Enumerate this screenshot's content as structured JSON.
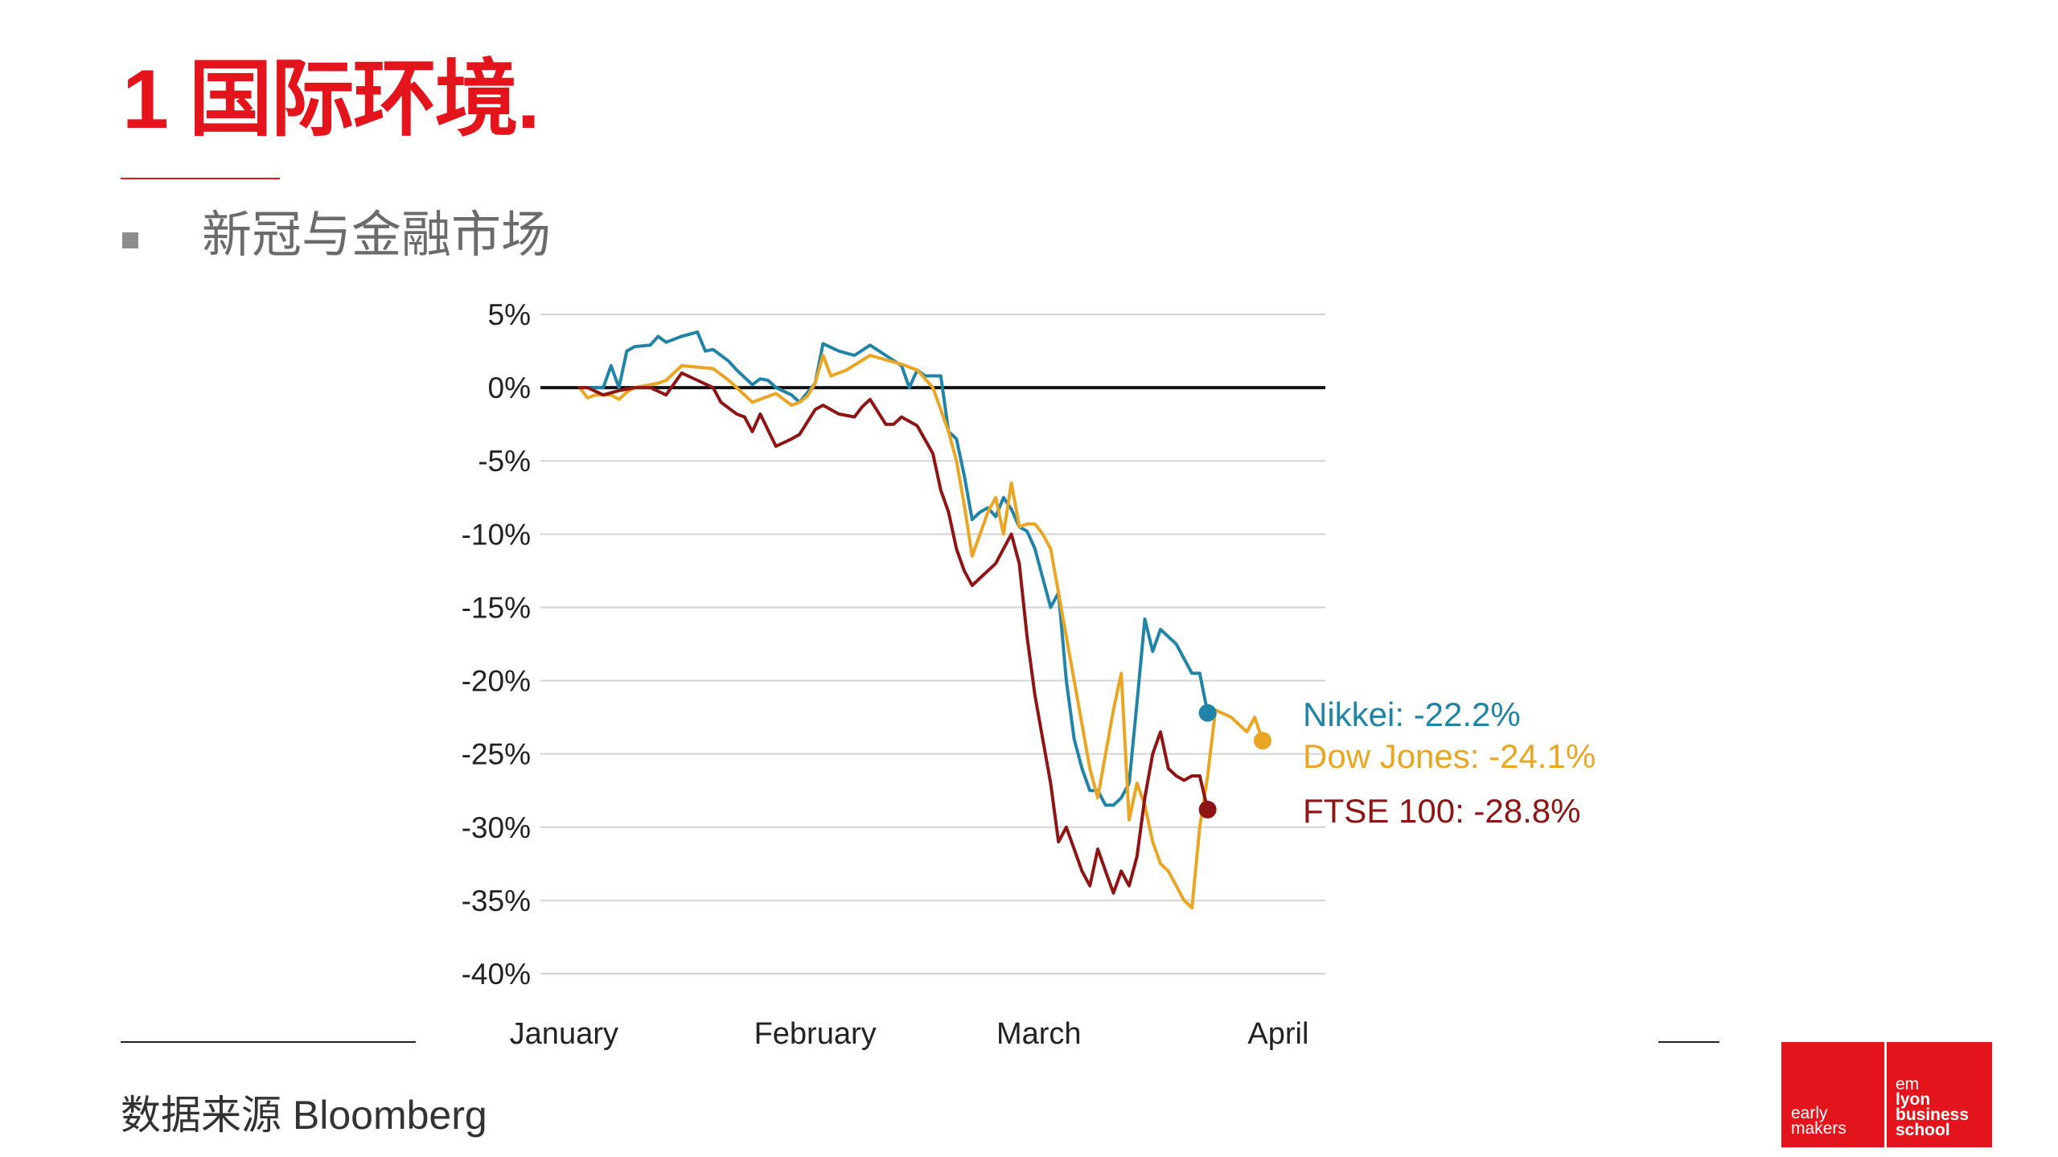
{
  "slide": {
    "title": "1 国际环境.",
    "bullet": "新冠与金融市场",
    "source": "数据来源 Bloomberg"
  },
  "logo": {
    "left_line1": "early",
    "left_line2": "makers",
    "right_line1": "em",
    "right_line2": "lyon",
    "right_line3": "business",
    "right_line4": "school",
    "color": "#e3141b"
  },
  "chart_data": {
    "type": "line",
    "title": "",
    "xlabel": "",
    "ylabel": "",
    "ylim": [
      -40,
      5
    ],
    "yticks": [
      5,
      0,
      -5,
      -10,
      -15,
      -20,
      -25,
      -30,
      -35,
      -40
    ],
    "ytick_labels": [
      "5%",
      "0%",
      "-5%",
      "-10%",
      "-15%",
      "-20%",
      "-25%",
      "-30%",
      "-35%",
      "-40%"
    ],
    "xlim": [
      0,
      100
    ],
    "xtick_positions": [
      3,
      35,
      63.5,
      94
    ],
    "xtick_labels": [
      "January",
      "February",
      "March",
      "April"
    ],
    "grid": true,
    "series": [
      {
        "name": "Nikkei",
        "label": "Nikkei: -22.2%",
        "color": "#1f84a8",
        "final": -22.2,
        "points": [
          [
            5,
            0
          ],
          [
            8,
            0
          ],
          [
            9,
            1.5
          ],
          [
            10,
            0
          ],
          [
            11,
            2.5
          ],
          [
            12,
            2.8
          ],
          [
            14,
            2.9
          ],
          [
            15,
            3.5
          ],
          [
            16,
            3.1
          ],
          [
            17,
            3.3
          ],
          [
            18,
            3.5
          ],
          [
            20,
            3.8
          ],
          [
            21,
            2.5
          ],
          [
            22,
            2.6
          ],
          [
            24,
            1.8
          ],
          [
            25,
            1.2
          ],
          [
            27,
            0.2
          ],
          [
            28,
            0.6
          ],
          [
            29,
            0.5
          ],
          [
            30,
            0
          ],
          [
            32,
            -0.5
          ],
          [
            33,
            -1
          ],
          [
            35,
            0.3
          ],
          [
            36,
            3
          ],
          [
            38,
            2.5
          ],
          [
            40,
            2.2
          ],
          [
            42,
            2.9
          ],
          [
            44,
            2.2
          ],
          [
            46,
            1.5
          ],
          [
            47,
            0
          ],
          [
            48,
            1.2
          ],
          [
            49,
            0.8
          ],
          [
            51,
            0.8
          ],
          [
            52,
            -3
          ],
          [
            53,
            -3.5
          ],
          [
            54,
            -6
          ],
          [
            55,
            -9
          ],
          [
            56,
            -8.5
          ],
          [
            57,
            -8.2
          ],
          [
            58,
            -8.8
          ],
          [
            59,
            -7.5
          ],
          [
            60,
            -8.3
          ],
          [
            61,
            -9.5
          ],
          [
            62,
            -9.8
          ],
          [
            63,
            -11
          ],
          [
            64,
            -13
          ],
          [
            65,
            -15
          ],
          [
            66,
            -14
          ],
          [
            67,
            -20
          ],
          [
            68,
            -24
          ],
          [
            69,
            -26
          ],
          [
            70,
            -27.5
          ],
          [
            71,
            -27.5
          ],
          [
            72,
            -28.5
          ],
          [
            73,
            -28.5
          ],
          [
            74,
            -28
          ],
          [
            75,
            -27
          ],
          [
            76,
            -21.5
          ],
          [
            77,
            -15.8
          ],
          [
            78,
            -18
          ],
          [
            79,
            -16.5
          ],
          [
            81,
            -17.5
          ],
          [
            82,
            -18.5
          ],
          [
            83,
            -19.5
          ],
          [
            84,
            -19.5
          ],
          [
            85,
            -22.2
          ]
        ]
      },
      {
        "name": "Dow Jones",
        "label": "Dow Jones: -24.1%",
        "color": "#eaa522",
        "final": -24.1,
        "points": [
          [
            5,
            0
          ],
          [
            6,
            -0.7
          ],
          [
            7,
            -0.5
          ],
          [
            9,
            -0.5
          ],
          [
            10,
            -0.8
          ],
          [
            11,
            -0.3
          ],
          [
            12,
            0
          ],
          [
            15,
            0.3
          ],
          [
            16,
            0.5
          ],
          [
            18,
            1.5
          ],
          [
            20,
            1.4
          ],
          [
            22,
            1.3
          ],
          [
            24,
            0.5
          ],
          [
            25,
            0
          ],
          [
            26,
            -0.5
          ],
          [
            27,
            -1
          ],
          [
            29,
            -0.6
          ],
          [
            30,
            -0.4
          ],
          [
            32,
            -1.2
          ],
          [
            33,
            -1
          ],
          [
            34,
            -0.6
          ],
          [
            35,
            0.3
          ],
          [
            36,
            2.2
          ],
          [
            37,
            0.8
          ],
          [
            39,
            1.2
          ],
          [
            42,
            2.2
          ],
          [
            44,
            1.9
          ],
          [
            46,
            1.6
          ],
          [
            48,
            1.2
          ],
          [
            50,
            0
          ],
          [
            51,
            -1.5
          ],
          [
            52,
            -3
          ],
          [
            53,
            -5
          ],
          [
            54,
            -8
          ],
          [
            55,
            -11.5
          ],
          [
            56,
            -10
          ],
          [
            57,
            -8.5
          ],
          [
            58,
            -7.5
          ],
          [
            59,
            -10
          ],
          [
            60,
            -6.5
          ],
          [
            61,
            -9.5
          ],
          [
            62,
            -9.3
          ],
          [
            63,
            -9.3
          ],
          [
            64,
            -10
          ],
          [
            65,
            -11
          ],
          [
            66,
            -14
          ],
          [
            67,
            -17
          ],
          [
            68,
            -20
          ],
          [
            69,
            -23
          ],
          [
            70,
            -26
          ],
          [
            71,
            -28
          ],
          [
            72,
            -25
          ],
          [
            73,
            -22
          ],
          [
            74,
            -19.5
          ],
          [
            75,
            -29.5
          ],
          [
            76,
            -27
          ],
          [
            77,
            -28.5
          ],
          [
            78,
            -31
          ],
          [
            79,
            -32.5
          ],
          [
            80,
            -33
          ],
          [
            81,
            -34
          ],
          [
            82,
            -35
          ],
          [
            83,
            -35.5
          ],
          [
            84,
            -30
          ],
          [
            85,
            -26.5
          ],
          [
            86,
            -22
          ],
          [
            88,
            -22.5
          ],
          [
            90,
            -23.5
          ],
          [
            91,
            -22.5
          ],
          [
            92,
            -24.1
          ]
        ]
      },
      {
        "name": "FTSE 100",
        "label": "FTSE 100: -28.8%",
        "color": "#8f1414",
        "final": -28.8,
        "points": [
          [
            5,
            0
          ],
          [
            6,
            0
          ],
          [
            8,
            -0.5
          ],
          [
            10,
            -0.2
          ],
          [
            12,
            0
          ],
          [
            14,
            0
          ],
          [
            16,
            -0.5
          ],
          [
            18,
            1
          ],
          [
            20,
            0.5
          ],
          [
            22,
            0
          ],
          [
            23,
            -1
          ],
          [
            24,
            -1.4
          ],
          [
            25,
            -1.8
          ],
          [
            26,
            -2
          ],
          [
            27,
            -3
          ],
          [
            28,
            -1.8
          ],
          [
            30,
            -4
          ],
          [
            32,
            -3.5
          ],
          [
            33,
            -3.2
          ],
          [
            35,
            -1.5
          ],
          [
            36,
            -1.2
          ],
          [
            38,
            -1.8
          ],
          [
            40,
            -2
          ],
          [
            41,
            -1.3
          ],
          [
            42,
            -0.8
          ],
          [
            44,
            -2.5
          ],
          [
            45,
            -2.5
          ],
          [
            46,
            -2
          ],
          [
            48,
            -2.6
          ],
          [
            50,
            -4.5
          ],
          [
            51,
            -7
          ],
          [
            52,
            -8.5
          ],
          [
            53,
            -11
          ],
          [
            54,
            -12.5
          ],
          [
            55,
            -13.5
          ],
          [
            56,
            -13
          ],
          [
            58,
            -12
          ],
          [
            59,
            -11
          ],
          [
            60,
            -10
          ],
          [
            61,
            -12
          ],
          [
            62,
            -17
          ],
          [
            63,
            -21
          ],
          [
            64,
            -24
          ],
          [
            65,
            -27
          ],
          [
            66,
            -31
          ],
          [
            67,
            -30
          ],
          [
            68,
            -31.5
          ],
          [
            69,
            -33
          ],
          [
            70,
            -34
          ],
          [
            71,
            -31.5
          ],
          [
            72,
            -33
          ],
          [
            73,
            -34.5
          ],
          [
            74,
            -33
          ],
          [
            75,
            -34
          ],
          [
            76,
            -32
          ],
          [
            77,
            -28
          ],
          [
            78,
            -25
          ],
          [
            79,
            -23.5
          ],
          [
            80,
            -26
          ],
          [
            81,
            -26.5
          ],
          [
            82,
            -26.8
          ],
          [
            83,
            -26.5
          ],
          [
            84,
            -26.5
          ],
          [
            85,
            -28.8
          ]
        ]
      }
    ]
  }
}
